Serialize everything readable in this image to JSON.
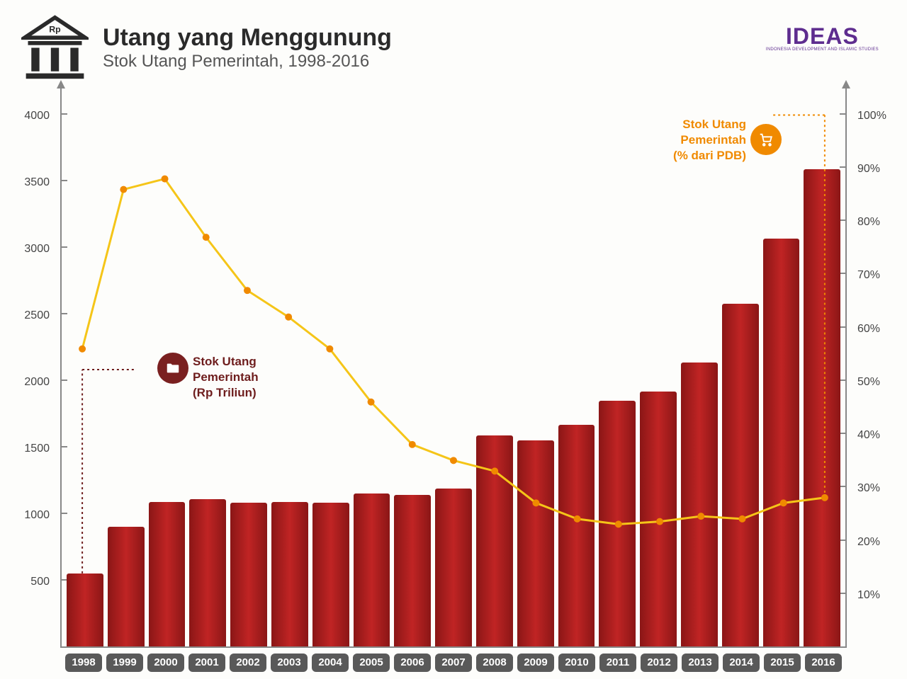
{
  "header": {
    "title": "Utang yang Menggunung",
    "subtitle": "Stok Utang Pemerintah, 1998-2016",
    "icon_label": "Rp"
  },
  "logo": {
    "main": "IDEAS",
    "sub": "INDONESIA DEVELOPMENT AND ISLAMIC STUDIES",
    "color": "#5e2d8f"
  },
  "chart": {
    "type": "combo-bar-line",
    "background_color": "#fdfdfb",
    "axis_color": "#888888",
    "categories": [
      "1998",
      "1999",
      "2000",
      "2001",
      "2002",
      "2003",
      "2004",
      "2005",
      "2006",
      "2007",
      "2008",
      "2009",
      "2010",
      "2011",
      "2012",
      "2013",
      "2014",
      "2015",
      "2016"
    ],
    "bar_series": {
      "name": "Stok Utang Pemerintah (Rp Triliun)",
      "name_lines": [
        "Stok Utang",
        "Pemerintah",
        "(Rp Triliun)"
      ],
      "color_gradient": [
        "#8a1616",
        "#c02424",
        "#8a1616"
      ],
      "callout_color": "#6e1d1d",
      "icon_bg": "#7a2020",
      "values": [
        550,
        900,
        1090,
        1110,
        1080,
        1090,
        1080,
        1150,
        1140,
        1190,
        1590,
        1550,
        1670,
        1850,
        1920,
        2140,
        2580,
        3070,
        3590
      ],
      "y_axis": {
        "min": 0,
        "max": 4200,
        "ticks": [
          500,
          1000,
          1500,
          2000,
          2500,
          3000,
          3500,
          4000
        ],
        "label_fontsize": 16
      }
    },
    "line_series": {
      "name": "Stok Utang Pemerintah (% dari PDB)",
      "name_lines": [
        "Stok Utang",
        "Pemerintah",
        "(% dari PDB)"
      ],
      "stroke_color": "#f5c518",
      "marker_color": "#f08a00",
      "callout_color": "#f08a00",
      "icon_bg": "#f08a00",
      "stroke_width": 3,
      "marker_radius": 5,
      "values_pct": [
        56,
        86,
        88,
        77,
        67,
        62,
        56,
        46,
        38,
        35,
        33,
        27,
        24,
        23,
        23.5,
        24.5,
        24,
        27,
        28
      ],
      "y_axis": {
        "min": 0,
        "max": 105,
        "ticks": [
          10,
          20,
          30,
          40,
          50,
          60,
          70,
          80,
          90,
          100
        ],
        "tick_suffix": "%",
        "label_fontsize": 16
      }
    },
    "x_label_style": {
      "bg": "#595959",
      "fg": "#ffffff",
      "fontsize": 15,
      "radius": 6
    },
    "callout_leader": {
      "style": "dotted",
      "width": 2
    }
  }
}
